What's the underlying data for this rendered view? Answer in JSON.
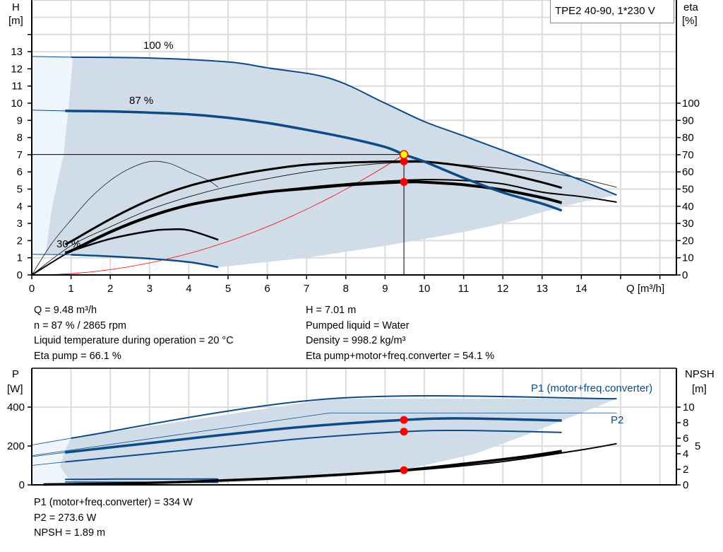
{
  "chart_data": [
    {
      "type": "line",
      "title": "TPE2 40-90, 1*230 V",
      "xlabel": "Q [m³/h]",
      "ylabel": [
        "H",
        "[m]"
      ],
      "y2label": [
        "eta",
        "[%]"
      ],
      "xlim": [
        0,
        16
      ],
      "ylim": [
        0,
        16
      ],
      "y2lim": [
        0,
        160
      ],
      "xticks": [
        0,
        1,
        2,
        3,
        4,
        5,
        6,
        7,
        8,
        9,
        10,
        11,
        12,
        13,
        14
      ],
      "yticks": [
        0,
        1,
        2,
        3,
        4,
        5,
        6,
        7,
        8,
        9,
        10,
        11,
        12,
        13
      ],
      "y2ticks": [
        0,
        10,
        20,
        30,
        40,
        50,
        60,
        70,
        80,
        90,
        100
      ],
      "grid": true,
      "colors": {
        "pump_curve": "#0d4a87",
        "eta_curve": "#000000",
        "system_curve": "#ff0000",
        "operating_range": "#d0dce8",
        "extended_range": "#eef5fc",
        "duty_point": "#ff0000",
        "duty_point_head": "#ffff00"
      },
      "operating_range": [
        [
          1.05,
          12.7
        ],
        [
          3,
          12.63
        ],
        [
          5,
          12.4
        ],
        [
          6,
          12.06
        ],
        [
          7.6,
          11.44
        ],
        [
          9,
          10.0
        ],
        [
          10,
          8.93
        ],
        [
          11,
          8.1
        ],
        [
          12,
          7.25
        ],
        [
          13,
          6.4
        ],
        [
          14,
          5.5
        ],
        [
          14.9,
          4.65
        ],
        [
          14,
          4.25
        ],
        [
          13,
          3.65
        ],
        [
          12,
          3.0
        ],
        [
          11,
          2.5
        ],
        [
          9,
          1.7
        ],
        [
          7,
          1.0
        ],
        [
          4.75,
          0.45
        ],
        [
          4,
          0.75
        ],
        [
          3,
          0.95
        ],
        [
          2,
          1.08
        ],
        [
          1,
          1.18
        ],
        [
          0.35,
          1.2
        ],
        [
          0.4,
          2
        ],
        [
          0.52,
          4
        ],
        [
          0.81,
          7
        ],
        [
          0.95,
          10
        ],
        [
          1.05,
          12.7
        ]
      ],
      "extended_range": [
        [
          0,
          12.72
        ],
        [
          1.05,
          12.7
        ],
        [
          0.95,
          10
        ],
        [
          0.81,
          7
        ],
        [
          0.52,
          4
        ],
        [
          0.4,
          2
        ],
        [
          0.35,
          1.2
        ],
        [
          0,
          1.2
        ]
      ],
      "head_series": [
        {
          "name": "100 %",
          "width": 2,
          "points": [
            [
              0,
              12.72
            ],
            [
              1,
              12.68
            ],
            [
              3,
              12.63
            ],
            [
              5,
              12.4
            ],
            [
              6,
              12.06
            ],
            [
              7.6,
              11.44
            ],
            [
              9,
              10.0
            ],
            [
              10,
              8.93
            ],
            [
              11,
              8.1
            ],
            [
              12,
              7.25
            ],
            [
              13,
              6.4
            ],
            [
              14,
              5.5
            ],
            [
              14.9,
              4.65
            ]
          ]
        },
        {
          "name": "87 %",
          "width": 3.5,
          "points": [
            [
              0,
              9.6
            ],
            [
              0.85,
              9.55
            ],
            [
              2,
              9.52
            ],
            [
              3,
              9.45
            ],
            [
              4,
              9.35
            ],
            [
              5,
              9.15
            ],
            [
              6,
              8.85
            ],
            [
              7,
              8.45
            ],
            [
              8,
              8.0
            ],
            [
              9,
              7.45
            ],
            [
              9.48,
              7.01
            ],
            [
              10,
              6.6
            ],
            [
              11,
              5.65
            ],
            [
              12,
              4.8
            ],
            [
              13,
              4.15
            ],
            [
              13.5,
              3.75
            ]
          ]
        },
        {
          "name": "30 %",
          "width": 2.5,
          "points": [
            [
              0,
              1.2
            ],
            [
              1,
              1.18
            ],
            [
              2,
              1.08
            ],
            [
              3,
              0.95
            ],
            [
              4,
              0.75
            ],
            [
              4.75,
              0.45
            ]
          ]
        }
      ],
      "eta_series": [
        {
          "width": 3,
          "points": [
            [
              0.85,
              18
            ],
            [
              1,
              19.5
            ],
            [
              2,
              32.5
            ],
            [
              3,
              43.6
            ],
            [
              4,
              51.8
            ],
            [
              5,
              57.2
            ],
            [
              6,
              61.3
            ],
            [
              7,
              64.2
            ],
            [
              8,
              65.4
            ],
            [
              9,
              66
            ],
            [
              9.48,
              66.1
            ],
            [
              10,
              66
            ],
            [
              11,
              63.4
            ],
            [
              12,
              59.3
            ],
            [
              13,
              53.9
            ],
            [
              13.5,
              50.7
            ]
          ]
        },
        {
          "width": 0.8,
          "points": [
            [
              0,
              0
            ],
            [
              1,
              17
            ],
            [
              2,
              28
            ],
            [
              3,
              38
            ],
            [
              4,
              45.5
            ],
            [
              5,
              51.5
            ],
            [
              6,
              56
            ],
            [
              7,
              60
            ],
            [
              8,
              63
            ],
            [
              9,
              65
            ],
            [
              10,
              65.5
            ],
            [
              11,
              64
            ],
            [
              12,
              62
            ],
            [
              13,
              60
            ],
            [
              14,
              56
            ],
            [
              14.9,
              51
            ]
          ]
        },
        {
          "width": 4,
          "points": [
            [
              0.85,
              13
            ],
            [
              1,
              14
            ],
            [
              2,
              25
            ],
            [
              3,
              34
            ],
            [
              4,
              40.7
            ],
            [
              5,
              44.9
            ],
            [
              6,
              48.3
            ],
            [
              7,
              50.3
            ],
            [
              8,
              52.3
            ],
            [
              9.48,
              54.1
            ],
            [
              10,
              54
            ],
            [
              11,
              52.5
            ],
            [
              12,
              49.5
            ],
            [
              13,
              45
            ],
            [
              13.5,
              42
            ]
          ]
        },
        {
          "width": 2,
          "points": [
            [
              0,
              0
            ],
            [
              1,
              14
            ],
            [
              2,
              25.5
            ],
            [
              3,
              34.5
            ],
            [
              4,
              41
            ],
            [
              5,
              45
            ],
            [
              6,
              48.5
            ],
            [
              7,
              51
            ],
            [
              8,
              53
            ],
            [
              9,
              54.5
            ],
            [
              10,
              55.5
            ],
            [
              11,
              55
            ],
            [
              12,
              53
            ],
            [
              13,
              48.2
            ],
            [
              14,
              45.6
            ],
            [
              14.9,
              42.4
            ]
          ]
        },
        {
          "width": 2.5,
          "points": [
            [
              0.85,
              13
            ],
            [
              1,
              14
            ],
            [
              2,
              21
            ],
            [
              3,
              25.5
            ],
            [
              3.5,
              26.5
            ],
            [
              4,
              26
            ],
            [
              4.75,
              20.5
            ]
          ]
        },
        {
          "width": 0.7,
          "points": [
            [
              0,
              0
            ],
            [
              0.5,
              18
            ],
            [
              1,
              32
            ],
            [
              1.5,
              45
            ],
            [
              2,
              55
            ],
            [
              2.5,
              62
            ],
            [
              3,
              66
            ],
            [
              3.5,
              65
            ],
            [
              4,
              60
            ],
            [
              4.5,
              55
            ],
            [
              4.75,
              51
            ]
          ]
        }
      ],
      "system_curve": {
        "Q_duty": 9.48,
        "H_duty": 7.01
      },
      "duty_point": {
        "Q": 9.48,
        "H": 7.01,
        "eta_pump": 66.1,
        "eta_total": 54.1
      }
    },
    {
      "type": "line",
      "ylabel": [
        "P",
        "[W]"
      ],
      "y2label": [
        "NPSH",
        "[m]"
      ],
      "xlim": [
        0,
        16
      ],
      "ylim": [
        0,
        600
      ],
      "y2lim": [
        0,
        15
      ],
      "yticks": [
        0,
        200,
        400
      ],
      "y2ticks": [
        0,
        2,
        4,
        5,
        6,
        8,
        10
      ],
      "grid": true,
      "operating_range": [
        [
          1,
          240
        ],
        [
          7.6,
          443
        ],
        [
          14.9,
          443
        ],
        [
          13.5,
          330
        ],
        [
          12.5,
          250
        ],
        [
          11.3,
          160
        ],
        [
          10,
          100
        ],
        [
          9,
          60
        ],
        [
          7,
          30
        ],
        [
          4.75,
          10
        ],
        [
          1.2,
          0
        ],
        [
          0.9,
          40
        ],
        [
          0.72,
          95
        ],
        [
          0.85,
          180
        ],
        [
          1,
          240
        ]
      ],
      "extended_range": [
        [
          0,
          205
        ],
        [
          1,
          240
        ],
        [
          0.85,
          180
        ],
        [
          0.72,
          95
        ],
        [
          0.9,
          40
        ],
        [
          1.2,
          0
        ],
        [
          0,
          0
        ]
      ],
      "power_series": [
        {
          "name": "P1 (motor+freq.converter)",
          "width": 2,
          "points": [
            [
              0,
              205
            ],
            [
              1,
              240
            ],
            [
              7.6,
              443
            ],
            [
              14.9,
              443
            ]
          ]
        },
        {
          "name": "P2",
          "width": 0.8,
          "points": [
            [
              0,
              150
            ],
            [
              7.6,
              370
            ],
            [
              14.9,
              370
            ]
          ]
        },
        {
          "width": 3.5,
          "points": [
            [
              0,
              145
            ],
            [
              0.85,
              167
            ],
            [
              3,
              215
            ],
            [
              5,
              260
            ],
            [
              7,
              300
            ],
            [
              9.48,
              334
            ],
            [
              11,
              342
            ],
            [
              13.5,
              331
            ]
          ]
        },
        {
          "width": 2,
          "points": [
            [
              0,
              100
            ],
            [
              0.85,
              118
            ],
            [
              3,
              160
            ],
            [
              5,
              200
            ],
            [
              7,
              240
            ],
            [
              9.48,
              273.6
            ],
            [
              11,
              280
            ],
            [
              13.5,
              270
            ]
          ]
        },
        {
          "width": 2,
          "points": [
            [
              0.85,
              28
            ],
            [
              2.5,
              30
            ],
            [
              4.75,
              30
            ]
          ]
        },
        {
          "width": 1.5,
          "points": [
            [
              0.85,
              15
            ],
            [
              2.5,
              14
            ],
            [
              4.75,
              12
            ]
          ]
        }
      ],
      "npsh_series": [
        {
          "width": 3.5,
          "points": [
            [
              0.3,
              0.05
            ],
            [
              2,
              0.15
            ],
            [
              4,
              0.4
            ],
            [
              6,
              0.8
            ],
            [
              8,
              1.35
            ],
            [
              9.48,
              1.89
            ],
            [
              11,
              2.7
            ],
            [
              12.5,
              3.6
            ],
            [
              13.5,
              4.35
            ]
          ]
        },
        {
          "width": 2,
          "points": [
            [
              0.3,
              0.05
            ],
            [
              3,
              0.3
            ],
            [
              6,
              0.8
            ],
            [
              8,
              1.3
            ],
            [
              10,
              2.0
            ],
            [
              12,
              3.0
            ],
            [
              14,
              4.5
            ],
            [
              14.9,
              5.3
            ]
          ]
        }
      ],
      "duty_points": {
        "Q": 9.48,
        "P1": 334,
        "P2": 273.6,
        "NPSH": 1.89
      }
    }
  ],
  "labels": {
    "series_100": "100 %",
    "series_87": "87 %",
    "series_30": "30 %",
    "p1_legend": "P1 (motor+freq.converter)",
    "p2_legend": "P2"
  },
  "info_left": [
    "Q = 9.48 m³/h",
    "n = 87 % / 2865 rpm",
    "Liquid temperature during operation = 20 °C",
    "Eta pump = 66.1 %"
  ],
  "info_right": [
    "H = 7.01 m",
    "Pumped liquid = Water",
    "Density = 998.2 kg/m³",
    "Eta pump+motor+freq.converter = 54.1 %"
  ],
  "info_bottom": [
    "P1 (motor+freq.converter) = 334 W",
    "P2 = 273.6 W",
    "NPSH = 1.89 m"
  ]
}
